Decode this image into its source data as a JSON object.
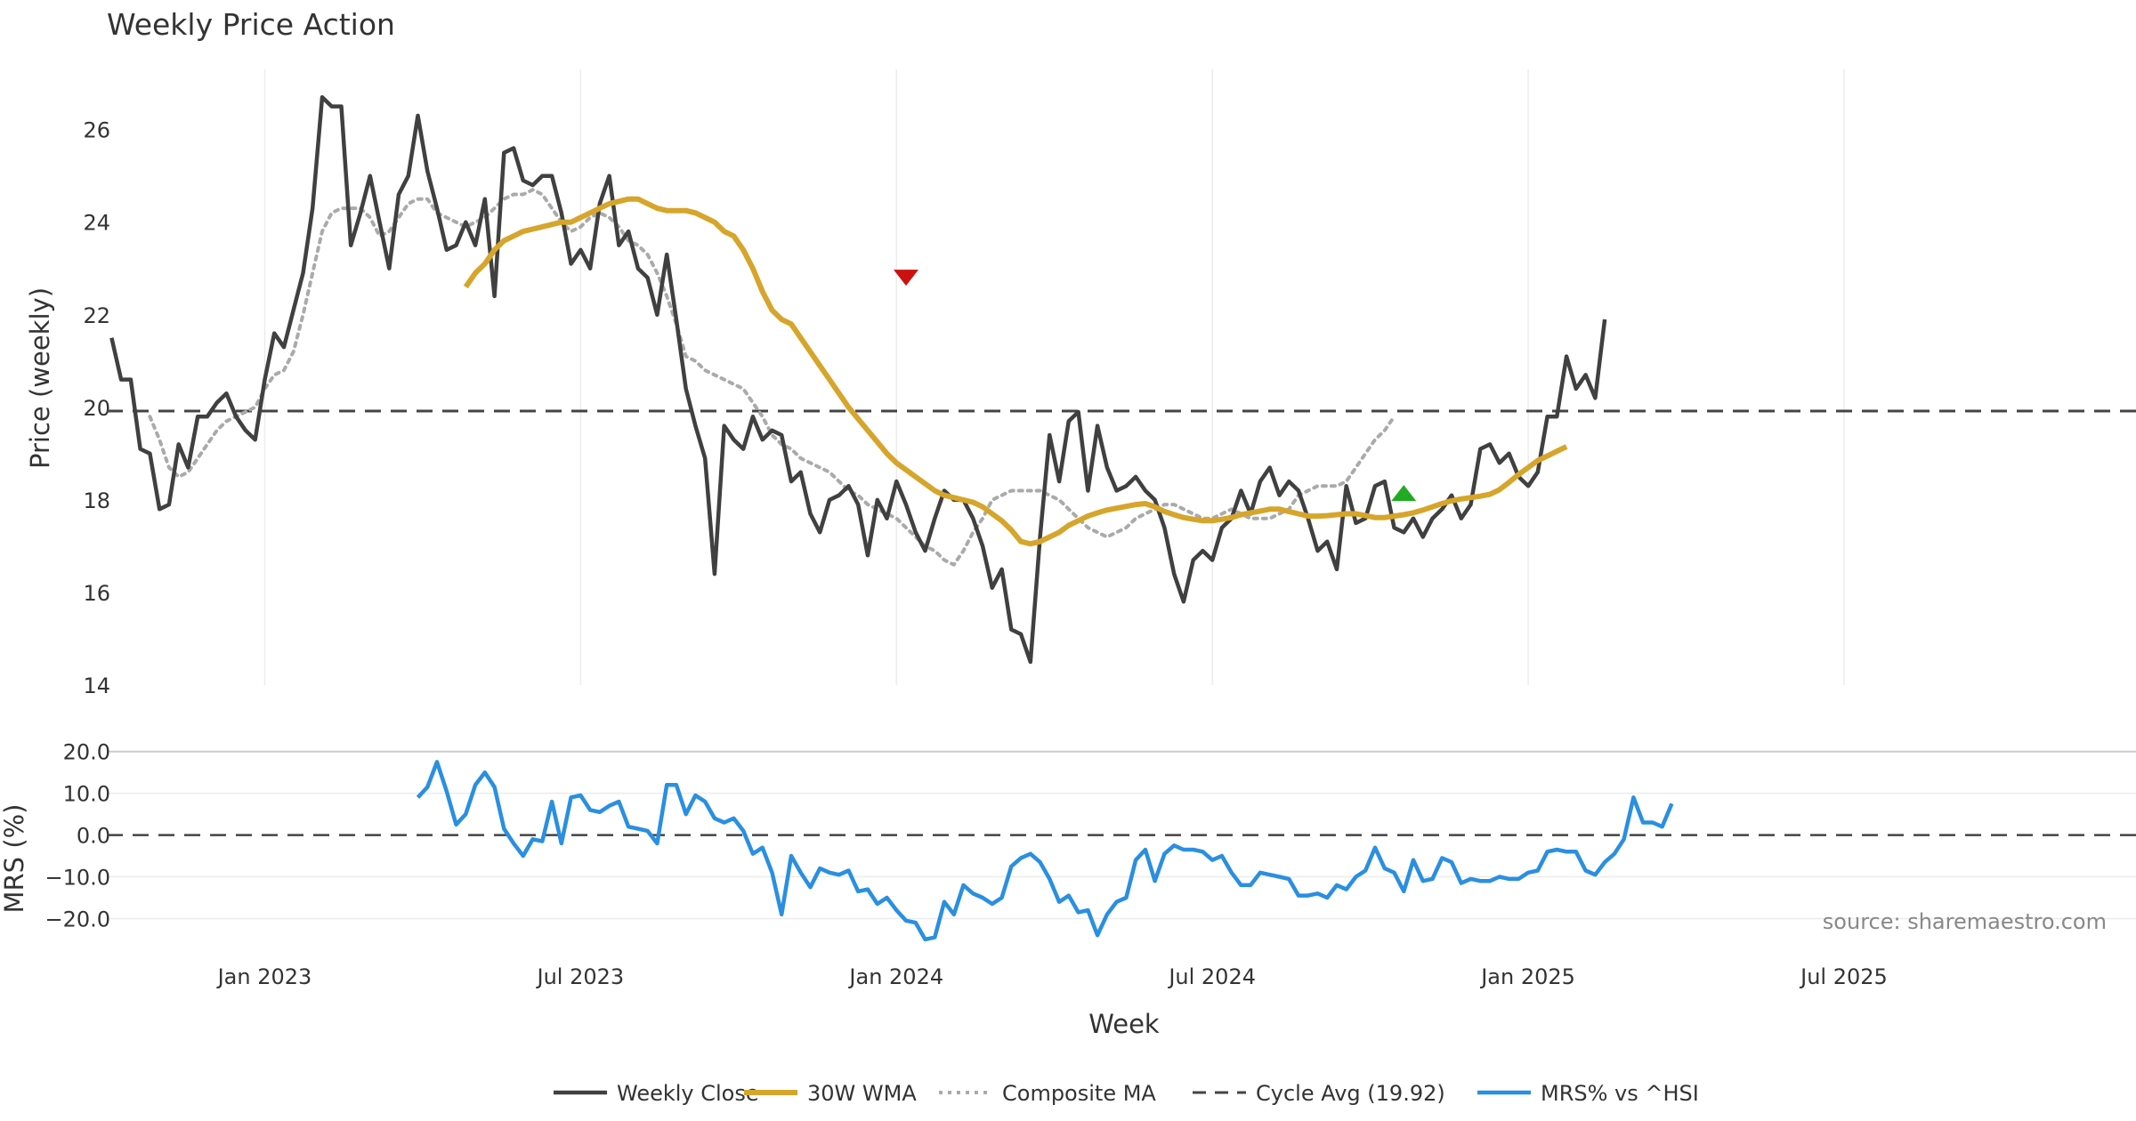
{
  "title": "Weekly Price Action",
  "colors": {
    "close": "#404040",
    "wma": "#d6a52b",
    "composite": "#aaaaaa",
    "cycle": "#444444",
    "mrs": "#2a8fe0",
    "sell_marker": "#cc1111",
    "buy_marker": "#22aa22",
    "grid": "#ececec"
  },
  "source": "source: sharemaestro.com",
  "chart_data": [
    {
      "type": "line",
      "panel": "price",
      "title": "Weekly Price Action",
      "xlabel": "Week",
      "ylabel": "Price (weekly)",
      "ylim": [
        14,
        27.3
      ],
      "yticks": [
        14,
        16,
        18,
        20,
        22,
        24,
        26
      ],
      "ytick_labels": [
        "14",
        "16",
        "18",
        "20",
        "22",
        "24",
        "26"
      ],
      "xlim": [
        -9.5,
        202.5
      ],
      "x_start_date": "2022-11-14",
      "xticks": [
        {
          "x": 7,
          "label": "Jan 2023"
        },
        {
          "x": 40,
          "label": "Jul 2023"
        },
        {
          "x": 73,
          "label": "Jan 2024"
        },
        {
          "x": 106,
          "label": "Jul 2024"
        },
        {
          "x": 139,
          "label": "Jan 2025"
        },
        {
          "x": 172,
          "label": "Jul 2025"
        }
      ],
      "grid": true,
      "cycle_avg": 19.92,
      "series": [
        {
          "name": "Weekly Close",
          "start": -9,
          "values": [
            21.5,
            20.6,
            20.6,
            19.1,
            19.0,
            17.8,
            17.9,
            19.2,
            18.7,
            19.8,
            19.8,
            20.1,
            20.3,
            19.8,
            19.5,
            19.3,
            20.6,
            21.6,
            21.3,
            22.1,
            22.9,
            24.3,
            26.7,
            26.5,
            26.5,
            23.5,
            24.2,
            25.0,
            24.0,
            23.0,
            24.6,
            25.0,
            26.3,
            25.1,
            24.3,
            23.4,
            23.5,
            24.0,
            23.5,
            24.5,
            22.4,
            25.5,
            25.6,
            24.9,
            24.8,
            25.0,
            25.0,
            24.2,
            23.1,
            23.4,
            23.0,
            24.4,
            25.0,
            23.5,
            23.8,
            23.0,
            22.8,
            22.0,
            23.3,
            21.9,
            20.4,
            19.6,
            18.9,
            16.4,
            19.6,
            19.3,
            19.1,
            19.8,
            19.3,
            19.5,
            19.4,
            18.4,
            18.6,
            17.7,
            17.3,
            18.0,
            18.1,
            18.3,
            17.9,
            16.8,
            18.0,
            17.6,
            18.4,
            17.9,
            17.3,
            16.9,
            17.6,
            18.2,
            18.0,
            18.0,
            17.6,
            17.0,
            16.1,
            16.5,
            15.2,
            15.1,
            14.5,
            17.2,
            19.4,
            18.4,
            19.7,
            19.9,
            18.2,
            19.6,
            18.7,
            18.2,
            18.3,
            18.5,
            18.2,
            18.0,
            17.4,
            16.4,
            15.8,
            16.7,
            16.9,
            16.7,
            17.4,
            17.6,
            18.2,
            17.7,
            18.4,
            18.7,
            18.1,
            18.4,
            18.2,
            17.6,
            16.9,
            17.1,
            16.5,
            18.3,
            17.5,
            17.6,
            18.3,
            18.4,
            17.4,
            17.3,
            17.6,
            17.2,
            17.6,
            17.8,
            18.1,
            17.6,
            17.9,
            19.1,
            19.2,
            18.8,
            19.0,
            18.5,
            18.3,
            18.6,
            19.8,
            19.8,
            21.1,
            20.4,
            20.7,
            20.2,
            21.9
          ]
        },
        {
          "name": "Composite MA",
          "start": -5,
          "values": [
            19.8,
            19.3,
            18.7,
            18.5,
            18.6,
            18.9,
            19.2,
            19.5,
            19.7,
            19.8,
            19.9,
            20.0,
            20.4,
            20.7,
            20.8,
            21.2,
            22.0,
            22.9,
            23.8,
            24.2,
            24.3,
            24.3,
            24.3,
            24.1,
            23.7,
            23.8,
            24.1,
            24.4,
            24.5,
            24.5,
            24.2,
            24.1,
            24.0,
            23.9,
            24.0,
            24.1,
            24.3,
            24.5,
            24.6,
            24.6,
            24.7,
            24.6,
            24.3,
            24.0,
            23.8,
            23.9,
            24.1,
            24.2,
            24.1,
            23.9,
            23.6,
            23.5,
            23.3,
            22.9,
            22.4,
            21.8,
            21.1,
            21.0,
            20.8,
            20.7,
            20.6,
            20.5,
            20.4,
            20.1,
            19.8,
            19.4,
            19.2,
            19.1,
            18.9,
            18.8,
            18.7,
            18.6,
            18.4,
            18.2,
            18.1,
            17.9,
            17.8,
            17.7,
            17.6,
            17.4,
            17.2,
            17.0,
            16.9,
            16.7,
            16.6,
            16.9,
            17.3,
            17.6,
            18.0,
            18.1,
            18.2,
            18.2,
            18.2,
            18.2,
            18.1,
            18.0,
            17.8,
            17.6,
            17.4,
            17.3,
            17.2,
            17.3,
            17.4,
            17.6,
            17.7,
            17.8,
            17.9,
            17.9,
            17.8,
            17.7,
            17.6,
            17.6,
            17.7,
            17.8,
            17.7,
            17.6,
            17.6,
            17.6,
            17.7,
            17.8,
            18.1,
            18.2,
            18.3,
            18.3,
            18.3,
            18.4,
            18.7,
            19.0,
            19.3,
            19.5,
            19.8
          ]
        },
        {
          "name": "30W WMA",
          "start": 28,
          "values": [
            22.6,
            22.9,
            23.1,
            23.4,
            23.6,
            23.7,
            23.8,
            23.85,
            23.9,
            23.95,
            24.0,
            24.0,
            24.1,
            24.2,
            24.3,
            24.4,
            24.45,
            24.5,
            24.5,
            24.4,
            24.3,
            24.25,
            24.25,
            24.25,
            24.2,
            24.1,
            24.0,
            23.8,
            23.7,
            23.4,
            23.0,
            22.5,
            22.1,
            21.9,
            21.8,
            21.5,
            21.2,
            20.9,
            20.6,
            20.3,
            20.0,
            19.75,
            19.5,
            19.25,
            19.0,
            18.8,
            18.65,
            18.5,
            18.35,
            18.2,
            18.1,
            18.05,
            18.0,
            17.95,
            17.85,
            17.7,
            17.55,
            17.35,
            17.1,
            17.05,
            17.1,
            17.2,
            17.3,
            17.45,
            17.55,
            17.65,
            17.72,
            17.78,
            17.82,
            17.86,
            17.9,
            17.92,
            17.85,
            17.75,
            17.68,
            17.62,
            17.58,
            17.55,
            17.55,
            17.58,
            17.62,
            17.68,
            17.72,
            17.76,
            17.8,
            17.8,
            17.75,
            17.7,
            17.65,
            17.65,
            17.66,
            17.68,
            17.7,
            17.7,
            17.66,
            17.62,
            17.62,
            17.65,
            17.68,
            17.72,
            17.78,
            17.85,
            17.92,
            17.98,
            18.02,
            18.05,
            18.08,
            18.12,
            18.22,
            18.38,
            18.55,
            18.7,
            18.85,
            18.95,
            19.05,
            19.15
          ]
        }
      ],
      "markers": [
        {
          "type": "sell",
          "x": 74,
          "y": 22.8
        },
        {
          "type": "buy",
          "x": 126,
          "y": 18.15
        }
      ]
    },
    {
      "type": "line",
      "panel": "mrs",
      "ylabel": "MRS (%)",
      "ylim": [
        -28,
        21
      ],
      "yticks": [
        -20,
        -10,
        0,
        10,
        20
      ],
      "ytick_labels": [
        "−20.0",
        "−10.0",
        "0.0",
        "10.0",
        "20.0"
      ],
      "series": [
        {
          "name": "MRS% vs ^HSI",
          "start": 23,
          "values": [
            9.0,
            11.5,
            17.5,
            10.5,
            2.5,
            5.0,
            12.0,
            15.0,
            11.5,
            1.5,
            -2.0,
            -5.0,
            -1.0,
            -1.5,
            8.0,
            -2.0,
            9.0,
            9.5,
            6.0,
            5.5,
            7.0,
            8.0,
            2.0,
            1.5,
            1.0,
            -2.0,
            12.0,
            12.0,
            5.0,
            9.5,
            8.0,
            4.0,
            3.0,
            4.0,
            1.0,
            -4.5,
            -3.0,
            -9.0,
            -19.0,
            -5.0,
            -9.0,
            -12.5,
            -8.0,
            -9.0,
            -9.5,
            -8.5,
            -13.5,
            -13.0,
            -16.5,
            -15.0,
            -18.0,
            -20.5,
            -21.0,
            -25.0,
            -24.5,
            -16.0,
            -19.0,
            -12.0,
            -14.0,
            -15.0,
            -16.5,
            -15.0,
            -7.5,
            -5.5,
            -4.5,
            -6.5,
            -10.5,
            -16.0,
            -14.5,
            -18.5,
            -18.0,
            -24.0,
            -19.0,
            -16.0,
            -15.0,
            -6.0,
            -3.5,
            -11.0,
            -4.5,
            -2.5,
            -3.5,
            -3.5,
            -4.0,
            -6.0,
            -5.0,
            -9.0,
            -12.0,
            -12.0,
            -9.0,
            -9.5,
            -10.0,
            -10.5,
            -14.5,
            -14.5,
            -14.0,
            -15.0,
            -12.0,
            -13.0,
            -10.0,
            -8.5,
            -3.0,
            -8.0,
            -9.0,
            -13.5,
            -6.0,
            -11.0,
            -10.5,
            -5.5,
            -6.5,
            -11.5,
            -10.5,
            -11.0,
            -11.0,
            -10.0,
            -10.5,
            -10.5,
            -9.0,
            -8.5,
            -4.0,
            -3.5,
            -4.0,
            -4.0,
            -8.5,
            -9.5,
            -6.5,
            -4.5,
            -1.0,
            9.0,
            3.0,
            3.0,
            2.0,
            7.5
          ]
        }
      ]
    }
  ],
  "legend": {
    "items": [
      {
        "label": "Weekly Close",
        "style": "solid",
        "color": "#404040"
      },
      {
        "label": "30W WMA",
        "style": "solid",
        "color": "#d6a52b"
      },
      {
        "label": "Composite MA",
        "style": "dotted",
        "color": "#aaaaaa"
      },
      {
        "label": "Cycle Avg (19.92)",
        "style": "dashed",
        "color": "#444444"
      },
      {
        "label": "MRS% vs ^HSI",
        "style": "solid",
        "color": "#2a8fe0"
      }
    ]
  }
}
